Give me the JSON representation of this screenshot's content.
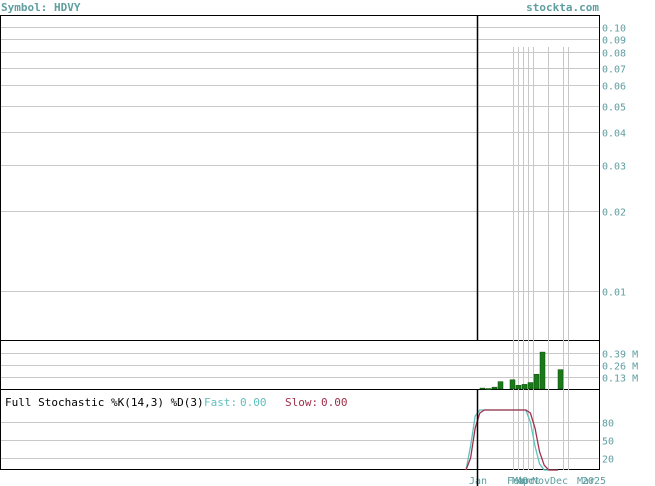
{
  "header": {
    "symbol_label": "Symbol: HDVY",
    "site": "stockta.com"
  },
  "colors": {
    "axis_text": "#5f9ea0",
    "grid": "#c8c8c8",
    "volume_bar": "#1a7a1a",
    "fast_line": "#5fbfbf",
    "slow_line": "#a0304a",
    "price_line": "#000000"
  },
  "chart_data": [
    {
      "type": "line",
      "panel": "price",
      "scale": "log",
      "ylim": [
        0.0065,
        0.11
      ],
      "y_ticks": [
        "0.10",
        "0.09",
        "0.08",
        "0.07",
        "0.06",
        "0.05",
        "0.04",
        "0.03",
        "0.02",
        "0.01"
      ],
      "y_tick_values": [
        0.1,
        0.09,
        0.08,
        0.07,
        0.06,
        0.05,
        0.04,
        0.03,
        0.02,
        0.01
      ],
      "x_ticks": [
        "Jan",
        "Feb",
        "Mar",
        "Apr",
        "Oct",
        "Nov",
        "Dec",
        "Mar",
        "2025"
      ],
      "grid": true
    },
    {
      "type": "bar",
      "panel": "volume",
      "y_ticks": [
        "0.39 M",
        "0.26 M",
        "0.13 M"
      ],
      "y_tick_values": [
        0.39,
        0.26,
        0.13
      ],
      "ylim": [
        0,
        0.52
      ],
      "values": [
        0.01,
        0.005,
        0.02,
        0.08,
        0.0,
        0.1,
        0.04,
        0.05,
        0.07,
        0.16,
        0.4,
        0.0,
        0.0,
        0.21,
        0.0
      ],
      "grid": true
    },
    {
      "type": "line",
      "panel": "stochastic",
      "title": "Full Stochastic %K(14,3) %D(3)",
      "fast_label": "Fast:",
      "fast_value": "0.00",
      "slow_label": "Slow:",
      "slow_value": "0.00",
      "y_ticks": [
        "80",
        "50",
        "20"
      ],
      "y_tick_values": [
        80,
        50,
        20
      ],
      "ylim": [
        0,
        100
      ],
      "series": [
        {
          "name": "Fast",
          "x": [
            0,
            1,
            2,
            3,
            4,
            5,
            6,
            7,
            8,
            9,
            10,
            11,
            12,
            13,
            14,
            15,
            16,
            17,
            18,
            19,
            20
          ],
          "values": [
            0,
            40,
            90,
            100,
            100,
            100,
            100,
            100,
            100,
            100,
            100,
            100,
            100,
            100,
            80,
            40,
            10,
            0,
            0,
            0,
            0
          ]
        },
        {
          "name": "Slow",
          "x": [
            0,
            1,
            2,
            3,
            4,
            5,
            6,
            7,
            8,
            9,
            10,
            11,
            12,
            13,
            14,
            15,
            16,
            17,
            18,
            19,
            20
          ],
          "values": [
            0,
            20,
            70,
            95,
            100,
            100,
            100,
            100,
            100,
            100,
            100,
            100,
            100,
            100,
            95,
            70,
            30,
            8,
            0,
            0,
            0
          ]
        }
      ]
    }
  ]
}
